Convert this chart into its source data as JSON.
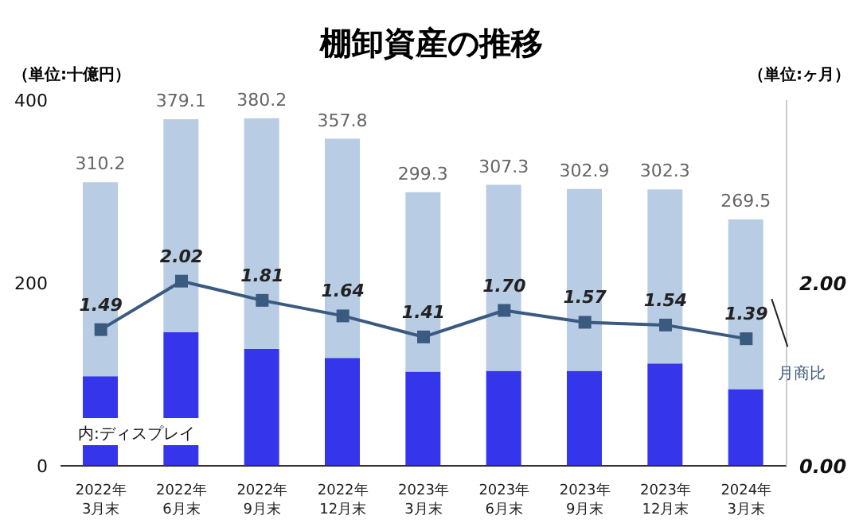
{
  "chart_data": {
    "type": "bar",
    "title": "棚卸資産の推移",
    "ylabel": "（単位:十億円）",
    "y2label": "（単位:ヶ月）",
    "categories": [
      "2022年\n3月末",
      "2022年\n6月末",
      "2022年\n9月末",
      "2022年\n12月末",
      "2023年\n3月末",
      "2023年\n6月末",
      "2023年\n9月末",
      "2023年\n12月末",
      "2024年\n3月末"
    ],
    "stacked": true,
    "series": [
      {
        "name": "内:ディスプレイ",
        "color": "#3535ec",
        "values": [
          98,
          146,
          128,
          118,
          103,
          104,
          104,
          112,
          84
        ]
      },
      {
        "color": "#b8cce4",
        "values": [
          212.2,
          233.1,
          252.2,
          239.8,
          196.3,
          203.3,
          198.9,
          190.3,
          185.5
        ]
      },
      {
        "name": "月商比",
        "type": "line",
        "axis": "y2",
        "color": "#3a5a80",
        "marker": "square",
        "values": [
          1.49,
          2.02,
          1.81,
          1.64,
          1.41,
          1.7,
          1.57,
          1.54,
          1.39
        ],
        "value_labels": [
          "1.49",
          "2.02",
          "1.81",
          "1.64",
          "1.41",
          "1.70",
          "1.57",
          "1.54",
          "1.39"
        ]
      }
    ],
    "totals": [
      "310.2",
      "379.1",
      "380.2",
      "357.8",
      "299.3",
      "307.3",
      "302.9",
      "302.3",
      "269.5"
    ],
    "ylim": [
      0,
      400
    ],
    "yticks": [
      0,
      200,
      400
    ],
    "y2lim": [
      0,
      4
    ],
    "y2ticks": [
      {
        "value": 0,
        "label": "0.00"
      },
      {
        "value": 2,
        "label": "2.00"
      }
    ],
    "grid": false,
    "legend": false
  }
}
